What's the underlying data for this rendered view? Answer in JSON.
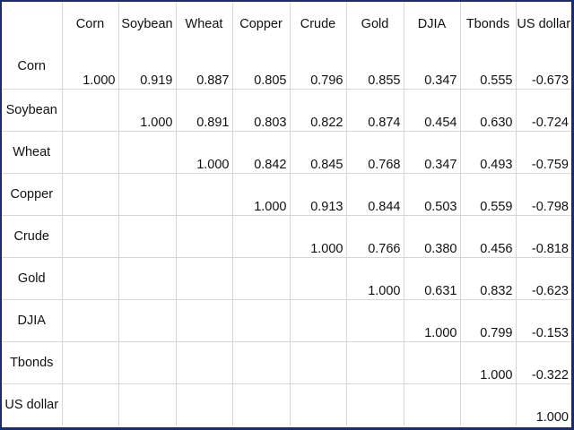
{
  "chart_data": {
    "type": "table",
    "title": "",
    "columns": [
      "Corn",
      "Soybean",
      "Wheat",
      "Copper",
      "Crude",
      "Gold",
      "DJIA",
      "Tbonds",
      "US dollar"
    ],
    "rows": [
      {
        "label": "Corn",
        "values": [
          "1.000",
          "0.919",
          "0.887",
          "0.805",
          "0.796",
          "0.855",
          "0.347",
          "0.555",
          "-0.673"
        ]
      },
      {
        "label": "Soybean",
        "values": [
          "",
          "1.000",
          "0.891",
          "0.803",
          "0.822",
          "0.874",
          "0.454",
          "0.630",
          "-0.724"
        ]
      },
      {
        "label": "Wheat",
        "values": [
          "",
          "",
          "1.000",
          "0.842",
          "0.845",
          "0.768",
          "0.347",
          "0.493",
          "-0.759"
        ]
      },
      {
        "label": "Copper",
        "values": [
          "",
          "",
          "",
          "1.000",
          "0.913",
          "0.844",
          "0.503",
          "0.559",
          "-0.798"
        ]
      },
      {
        "label": "Crude",
        "values": [
          "",
          "",
          "",
          "",
          "1.000",
          "0.766",
          "0.380",
          "0.456",
          "-0.818"
        ]
      },
      {
        "label": "Gold",
        "values": [
          "",
          "",
          "",
          "",
          "",
          "1.000",
          "0.631",
          "0.832",
          "-0.623"
        ]
      },
      {
        "label": "DJIA",
        "values": [
          "",
          "",
          "",
          "",
          "",
          "",
          "1.000",
          "0.799",
          "-0.153"
        ]
      },
      {
        "label": "Tbonds",
        "values": [
          "",
          "",
          "",
          "",
          "",
          "",
          "",
          "1.000",
          "-0.322"
        ]
      },
      {
        "label": "US dollar",
        "values": [
          "",
          "",
          "",
          "",
          "",
          "",
          "",
          "",
          "1.000"
        ]
      }
    ]
  },
  "colors": {
    "frame_border": "#1c2a6e",
    "grid_line": "#d7d7d7",
    "text": "#111111",
    "background": "#ffffff"
  }
}
